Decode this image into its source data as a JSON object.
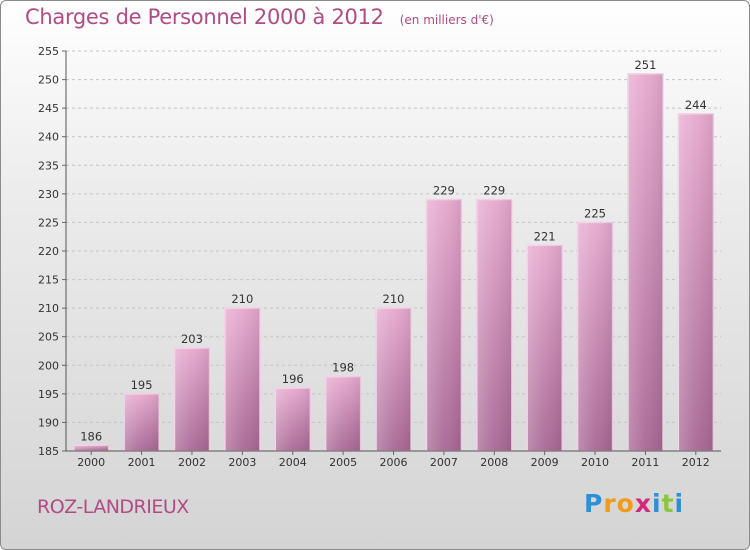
{
  "chart_data": {
    "type": "bar",
    "title": "Charges de Personnel 2000 à 2012",
    "subtitle": "(en milliers d'€)",
    "xlabel": "",
    "ylabel": "",
    "categories": [
      "2000",
      "2001",
      "2002",
      "2003",
      "2004",
      "2005",
      "2006",
      "2007",
      "2008",
      "2009",
      "2010",
      "2011",
      "2012"
    ],
    "values": [
      186,
      195,
      203,
      210,
      196,
      198,
      210,
      229,
      229,
      221,
      225,
      251,
      244
    ],
    "ylim": [
      185,
      255
    ],
    "yticks": [
      185,
      190,
      195,
      200,
      205,
      210,
      215,
      220,
      225,
      230,
      235,
      240,
      245,
      250,
      255
    ],
    "grid": true,
    "bar_color": "#cf84b3",
    "title_color": "#b24a86"
  },
  "footer": {
    "place": "ROZ-LANDRIEUX",
    "logo_letters": [
      "P",
      "r",
      "o",
      "x",
      "i",
      "t",
      "i"
    ],
    "logo_colors": [
      "#2e8fd6",
      "#f29a1a",
      "#f29a1a",
      "#d4287a",
      "#2e8fd6",
      "#8cc63f",
      "#2e8fd6"
    ]
  }
}
